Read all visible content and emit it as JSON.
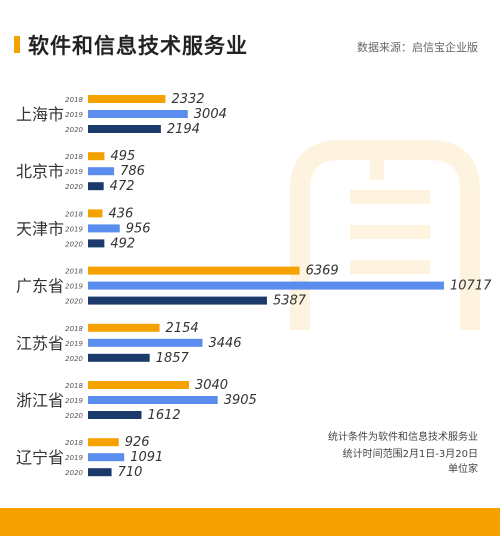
{
  "header": {
    "title": "软件和信息技术服务业",
    "source": "数据来源：启信宝企业版"
  },
  "notes": [
    "统计条件为软件和信息技术服务业",
    "统计时间范围2月1日-3月20日",
    "单位家"
  ],
  "colors": {
    "accent": "#f5a200",
    "y2018": "#f5a200",
    "y2019": "#5b8def",
    "y2020": "#1b3a6b",
    "watermark": "#fdebc4"
  },
  "chart_data": {
    "type": "bar",
    "orientation": "horizontal",
    "categories": [
      "上海市",
      "北京市",
      "天津市",
      "广东省",
      "江苏省",
      "浙江省",
      "辽宁省"
    ],
    "series": [
      {
        "name": "2018",
        "values": [
          2332,
          495,
          436,
          6369,
          2154,
          3040,
          926
        ]
      },
      {
        "name": "2019",
        "values": [
          3004,
          786,
          956,
          10717,
          3446,
          3905,
          1091
        ]
      },
      {
        "name": "2020",
        "values": [
          2194,
          472,
          492,
          5387,
          1857,
          1612,
          710
        ]
      }
    ],
    "series_colors": [
      "#f5a200",
      "#5b8def",
      "#1b3a6b",
      "#f5a200",
      "#5b8def",
      "#1b3a6b"
    ],
    "xlim": [
      0,
      10717
    ],
    "grid": false,
    "legend": "none"
  }
}
